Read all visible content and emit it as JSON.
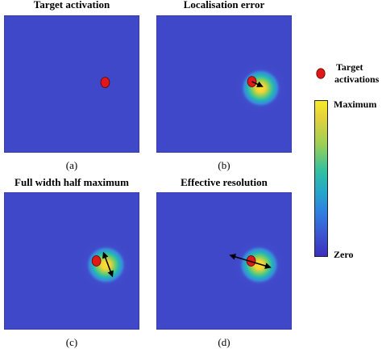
{
  "panels": [
    {
      "title": "Target activation",
      "caption": "(a)"
    },
    {
      "title": "Localisation error",
      "caption": "(b)"
    },
    {
      "title": "Full width half maximum",
      "caption": "(c)"
    },
    {
      "title": "Effective resolution",
      "caption": "(d)"
    }
  ],
  "legend": {
    "marker_label_line1": "Target",
    "marker_label_line2": "activations",
    "colorbar_max_label": "Maximum",
    "colorbar_min_label": "Zero"
  },
  "colors": {
    "background_field": "#3f48c8",
    "marker": "#e01818",
    "colorbar_top": "#f5ec28",
    "colorbar_mid": "#24b8b0",
    "colorbar_bottom": "#3b2fc0"
  }
}
